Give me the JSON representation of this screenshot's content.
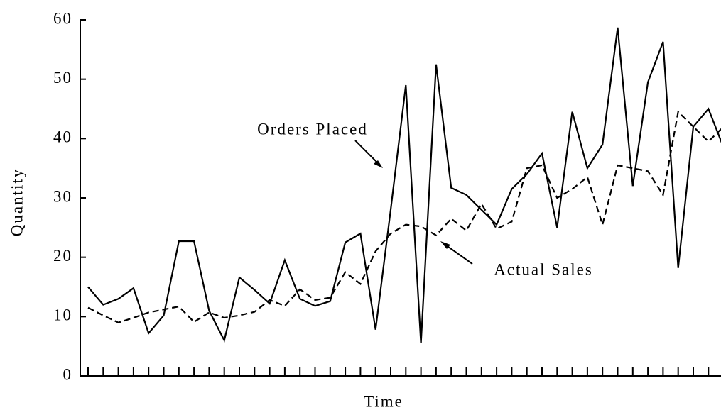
{
  "chart_data": {
    "type": "line",
    "xlabel": "Time",
    "ylabel": "Quantity",
    "categories": [
      null,
      null,
      null,
      null,
      null,
      null,
      null,
      null,
      null,
      null,
      null,
      null,
      null,
      null,
      null,
      null,
      null,
      null,
      null,
      null,
      null,
      null,
      null,
      null,
      null,
      null,
      null,
      null,
      null,
      null,
      null,
      null,
      null,
      null,
      null,
      null,
      null,
      null,
      null,
      null,
      null,
      null,
      null
    ],
    "series": [
      {
        "name": "Orders Placed",
        "color": "#000000",
        "dash": "solid",
        "values": [
          15,
          12,
          13,
          14.8,
          7.2,
          10.2,
          22.7,
          22.7,
          11,
          6,
          16.6,
          14.5,
          12.2,
          19.5,
          13,
          11.8,
          12.6,
          22.5,
          24,
          7.8,
          28,
          49,
          5.5,
          52.5,
          31.7,
          30.5,
          28,
          25.5,
          31.5,
          34,
          37.5,
          25,
          44.5,
          35,
          39,
          58.7,
          32,
          49.5,
          56.3,
          18.2,
          42,
          45,
          38.5
        ]
      },
      {
        "name": "Actual Sales",
        "color": "#000000",
        "dash": "dashed",
        "values": [
          11.5,
          10.2,
          9,
          9.8,
          10.7,
          11.2,
          11.7,
          9.1,
          10.7,
          9.8,
          10.2,
          10.8,
          12.8,
          11.8,
          14.6,
          12.8,
          13.2,
          17.5,
          15.5,
          21,
          24,
          25.5,
          25.2,
          23.7,
          26.5,
          24.5,
          29,
          24.8,
          26,
          35,
          35.5,
          30,
          31.5,
          33.5,
          25.5,
          35.5,
          35,
          34.5,
          30.5,
          44.5,
          42,
          39.5,
          42
        ]
      }
    ],
    "ylim": [
      0,
      60
    ],
    "yticks": [
      0,
      10,
      20,
      30,
      40,
      50,
      60
    ],
    "grid": false
  }
}
